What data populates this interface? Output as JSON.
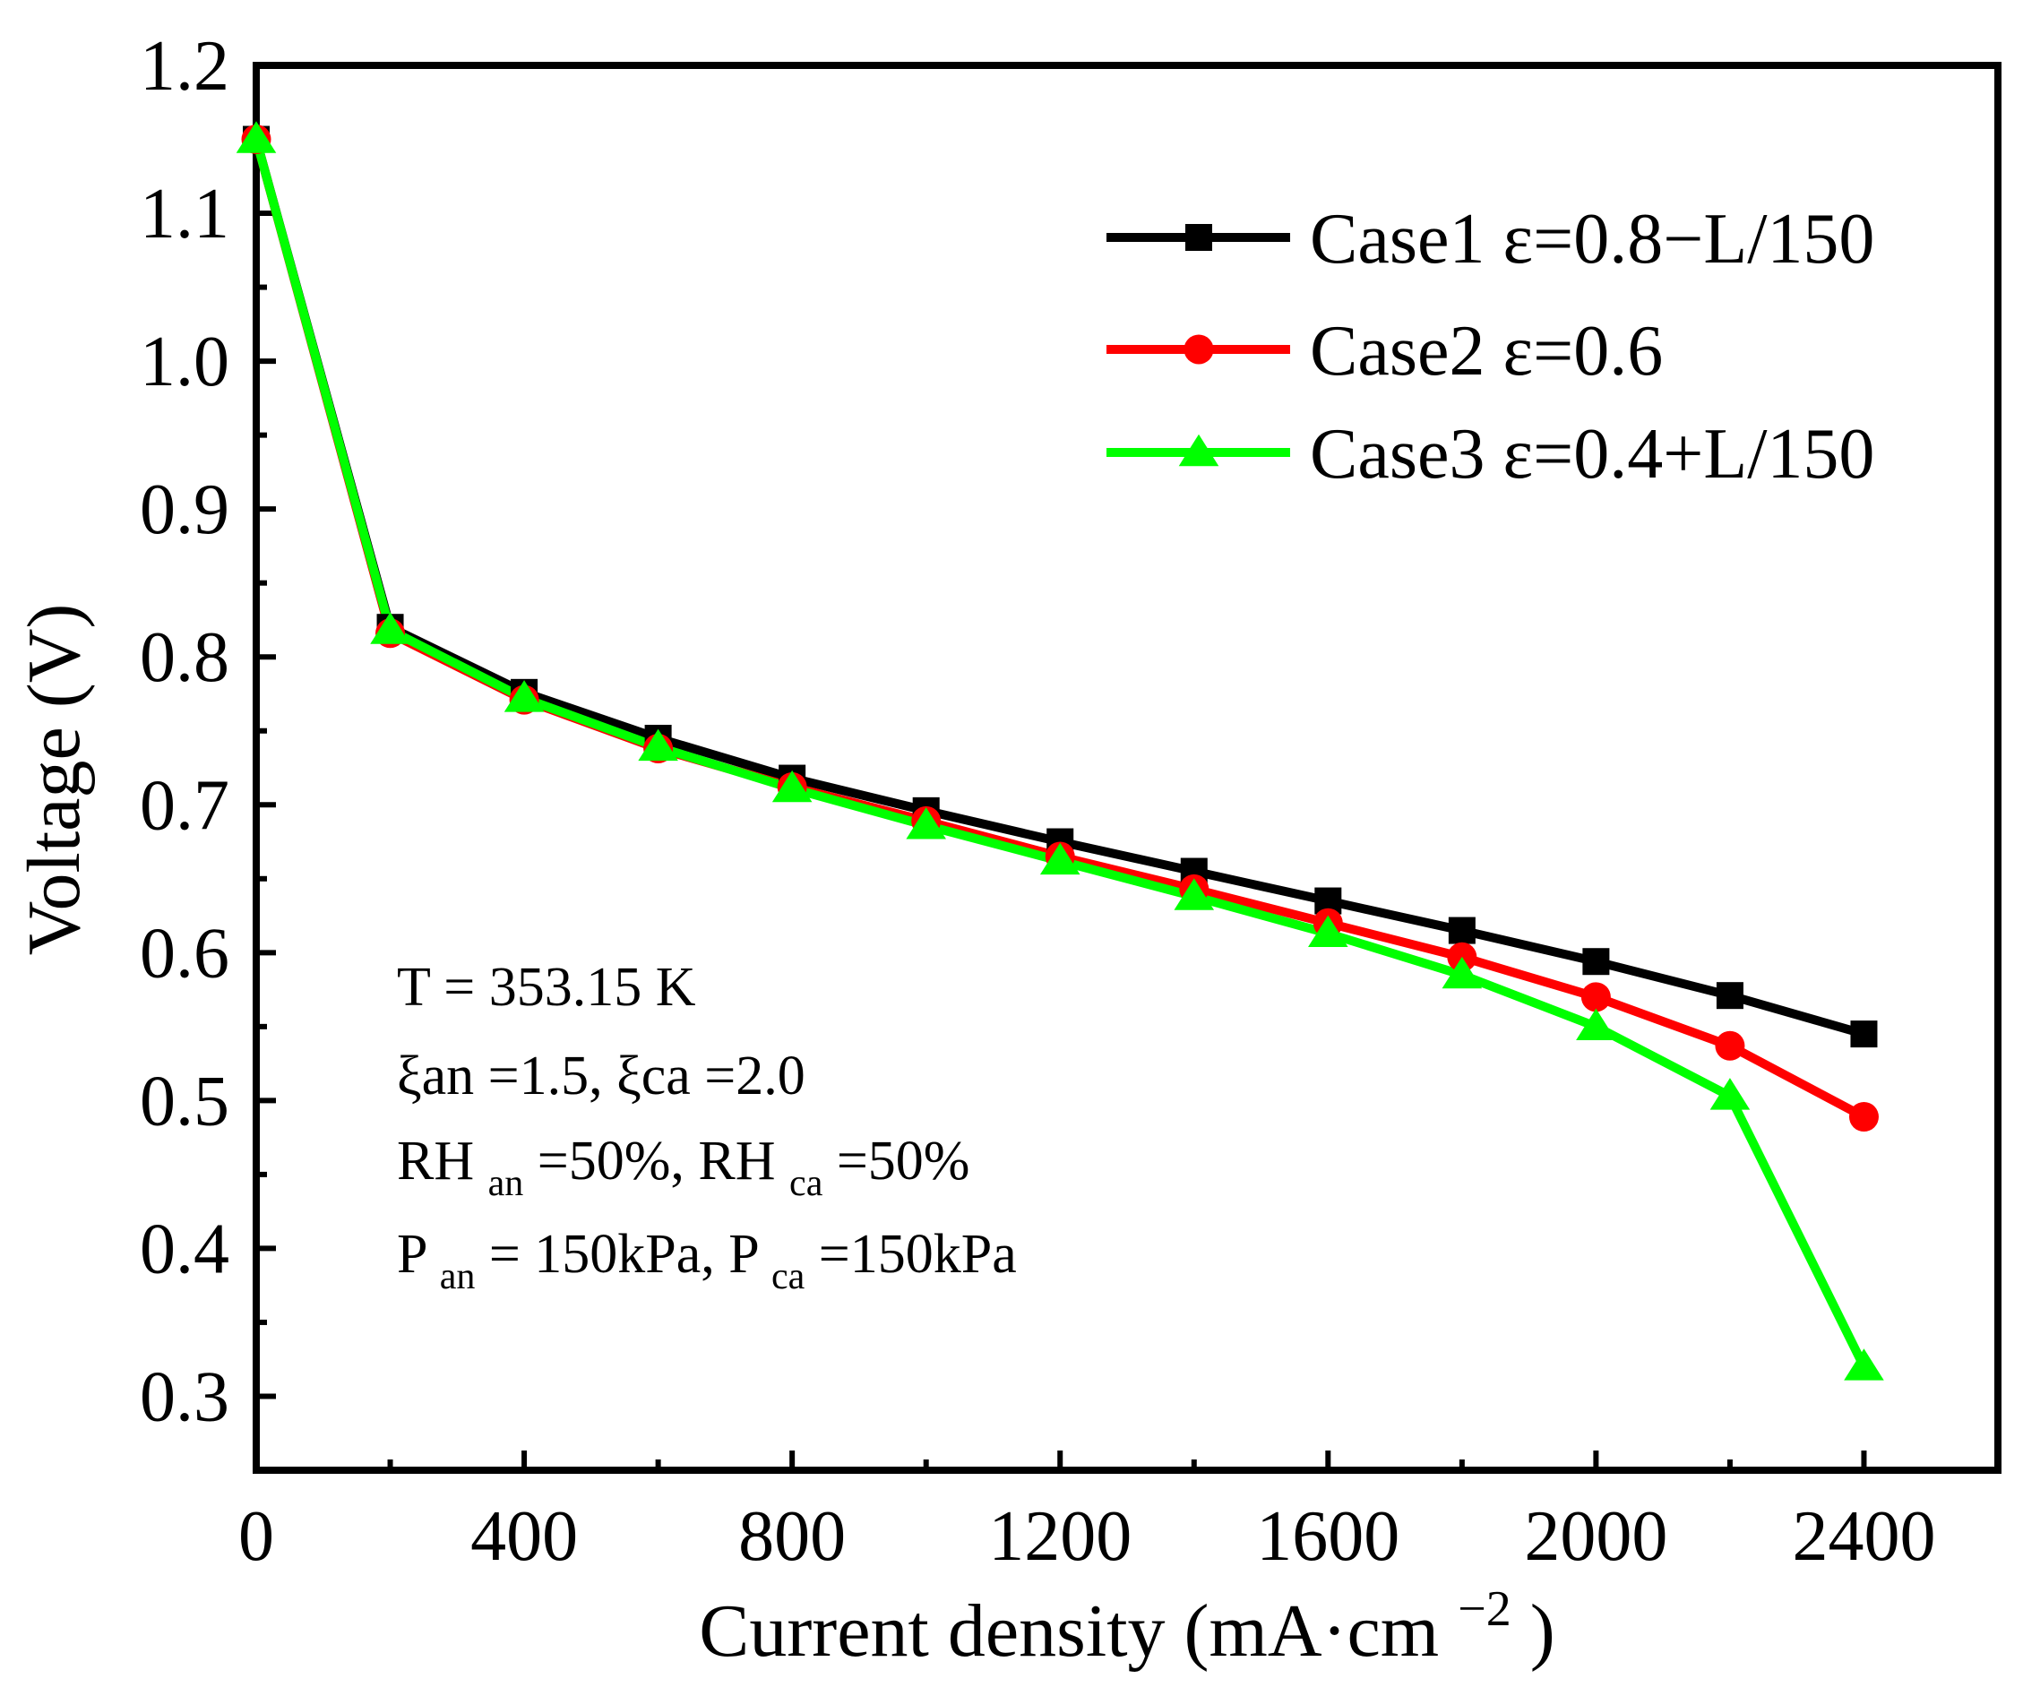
{
  "chart_data": {
    "type": "line",
    "title": "",
    "xlabel": "Current density",
    "xlabel_unit": "(mA·cm",
    "xlabel_unit_exp": "−2",
    "xlabel_unit_close": ")",
    "ylabel": "Voltage (V)",
    "xlim": [
      0,
      2600
    ],
    "ylim": [
      0.25,
      1.2
    ],
    "xticks": [
      0,
      400,
      800,
      1200,
      1600,
      2000,
      2400
    ],
    "xtick_labels": [
      "0",
      "400",
      "800",
      "1200",
      "1600",
      "2000",
      "2400"
    ],
    "yticks": [
      0.3,
      0.4,
      0.5,
      0.6,
      0.7,
      0.8,
      0.9,
      1.0,
      1.1,
      1.2
    ],
    "ytick_labels": [
      "0.3",
      "0.4",
      "0.5",
      "0.6",
      "0.7",
      "0.8",
      "0.9",
      "1.0",
      "1.1",
      "1.2"
    ],
    "grid": false,
    "legend_position": "top-right",
    "x": [
      0,
      200,
      400,
      600,
      800,
      1000,
      1200,
      1400,
      1600,
      1800,
      2000,
      2200,
      2400
    ],
    "series": [
      {
        "name": "Case1 ε=0.8−L/150",
        "color": "#000000",
        "marker": "square",
        "values": [
          1.15,
          0.82,
          0.776,
          0.745,
          0.718,
          0.696,
          0.675,
          0.655,
          0.635,
          0.615,
          0.594,
          0.571,
          0.545
        ]
      },
      {
        "name": "Case2 ε=0.6",
        "color": "#ff0000",
        "marker": "circle",
        "values": [
          1.15,
          0.816,
          0.771,
          0.738,
          0.712,
          0.689,
          0.665,
          0.643,
          0.62,
          0.597,
          0.57,
          0.537,
          0.489
        ]
      },
      {
        "name": "Case3 ε=0.4+L/150",
        "color": "#00ff00",
        "marker": "triangle",
        "values": [
          1.15,
          0.818,
          0.772,
          0.739,
          0.711,
          0.686,
          0.662,
          0.638,
          0.613,
          0.585,
          0.55,
          0.503,
          0.32
        ]
      }
    ],
    "annotations": {
      "line1": "T = 353.15 K",
      "line2": "ξan =1.5, ξca =2.0",
      "line3": {
        "a": "RH",
        "a_sub": "an",
        "b": "=50%, RH",
        "b_sub": "ca",
        "c": "=50%"
      },
      "line4": {
        "a": "P",
        "a_sub": "an",
        "b": " = 150kPa, P",
        "b_sub": "ca",
        "c": "=150kPa"
      }
    }
  }
}
